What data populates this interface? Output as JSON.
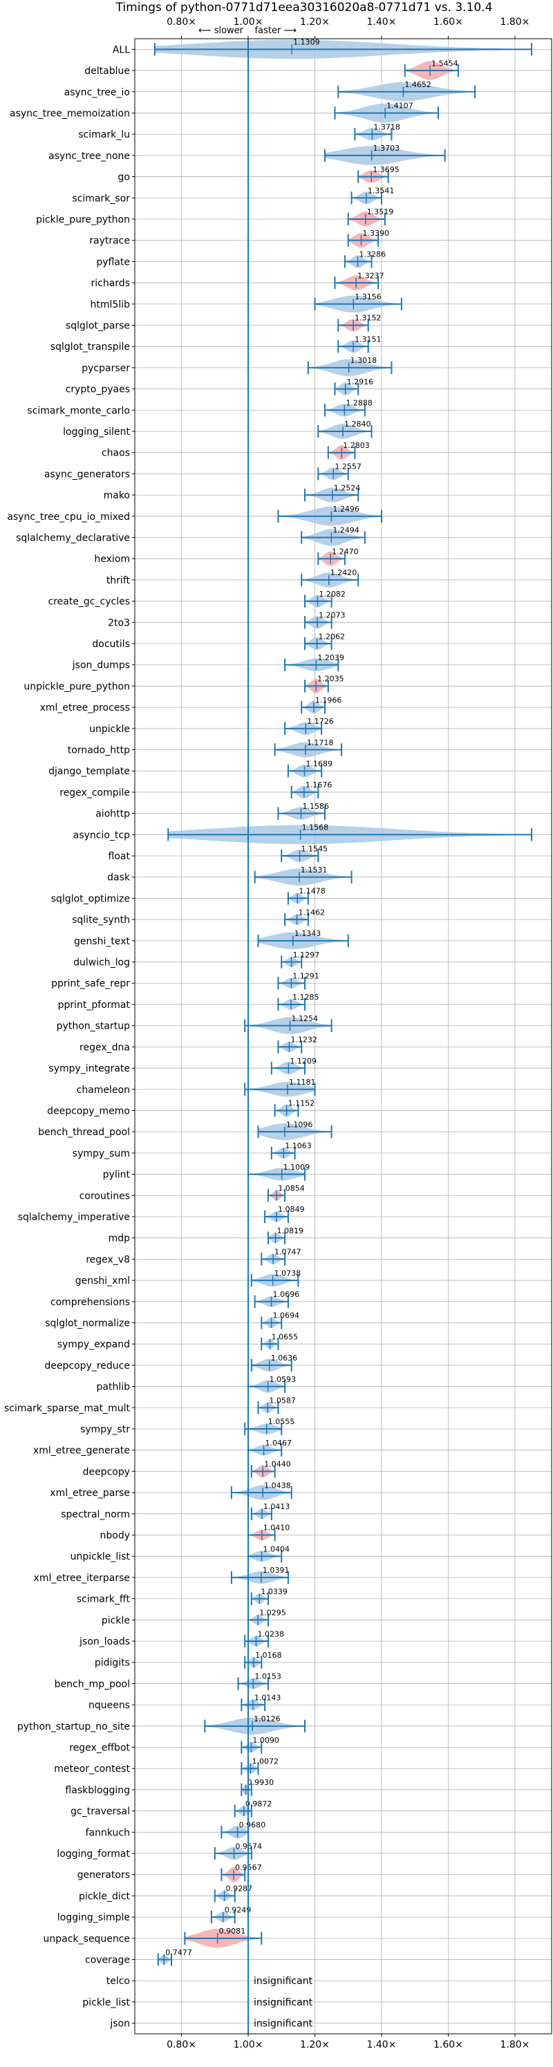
{
  "chart_data": {
    "type": "violin",
    "title": "Timings of python-0771d71eea30316020a8-0771d71 vs. 3.10.4",
    "direction_label": "⟵ slower    faster ⟶",
    "x_ticks": [
      0.8,
      1.0,
      1.2,
      1.4,
      1.6,
      1.8
    ],
    "x_tick_labels": [
      "0.80×",
      "1.00×",
      "1.20×",
      "1.40×",
      "1.60×",
      "1.80×"
    ],
    "xlim": [
      0.66,
      1.91
    ],
    "reference_line": 1.0,
    "grid": true,
    "colors": {
      "faster": "#a9c8e4",
      "slower": "#f3a9ad",
      "line": "#1f77b4",
      "grid": "#b0b0b0"
    },
    "insignificant_label": "insignificant",
    "benchmarks": [
      {
        "name": "ALL",
        "value": 1.1309,
        "lo": 0.72,
        "hi": 1.85,
        "w": 0.9,
        "color": "faster"
      },
      {
        "name": "deltablue",
        "value": 1.5454,
        "lo": 1.47,
        "hi": 1.63,
        "w": 0.9,
        "color": "slower"
      },
      {
        "name": "async_tree_io",
        "value": 1.4652,
        "lo": 1.27,
        "hi": 1.68,
        "w": 0.9,
        "color": "faster"
      },
      {
        "name": "async_tree_memoization",
        "value": 1.4107,
        "lo": 1.26,
        "hi": 1.57,
        "w": 0.9,
        "color": "faster"
      },
      {
        "name": "scimark_lu",
        "value": 1.3718,
        "lo": 1.32,
        "hi": 1.43,
        "w": 0.6,
        "color": "faster"
      },
      {
        "name": "async_tree_none",
        "value": 1.3703,
        "lo": 1.23,
        "hi": 1.59,
        "w": 0.9,
        "color": "faster"
      },
      {
        "name": "go",
        "value": 1.3695,
        "lo": 1.33,
        "hi": 1.42,
        "w": 0.6,
        "color": "slower"
      },
      {
        "name": "scimark_sor",
        "value": 1.3541,
        "lo": 1.31,
        "hi": 1.4,
        "w": 0.6,
        "color": "faster"
      },
      {
        "name": "pickle_pure_python",
        "value": 1.3519,
        "lo": 1.3,
        "hi": 1.41,
        "w": 0.7,
        "color": "slower"
      },
      {
        "name": "raytrace",
        "value": 1.339,
        "lo": 1.3,
        "hi": 1.39,
        "w": 0.7,
        "color": "slower"
      },
      {
        "name": "pyflate",
        "value": 1.3286,
        "lo": 1.29,
        "hi": 1.37,
        "w": 0.6,
        "color": "faster"
      },
      {
        "name": "richards",
        "value": 1.3237,
        "lo": 1.26,
        "hi": 1.39,
        "w": 0.7,
        "color": "slower"
      },
      {
        "name": "html5lib",
        "value": 1.3156,
        "lo": 1.2,
        "hi": 1.46,
        "w": 0.8,
        "color": "faster"
      },
      {
        "name": "sqlglot_parse",
        "value": 1.3152,
        "lo": 1.27,
        "hi": 1.36,
        "w": 0.6,
        "color": "slower"
      },
      {
        "name": "sqlglot_transpile",
        "value": 1.3151,
        "lo": 1.27,
        "hi": 1.36,
        "w": 0.6,
        "color": "faster"
      },
      {
        "name": "pycparser",
        "value": 1.3018,
        "lo": 1.18,
        "hi": 1.43,
        "w": 0.8,
        "color": "faster"
      },
      {
        "name": "crypto_pyaes",
        "value": 1.2916,
        "lo": 1.26,
        "hi": 1.33,
        "w": 0.6,
        "color": "faster"
      },
      {
        "name": "scimark_monte_carlo",
        "value": 1.2888,
        "lo": 1.23,
        "hi": 1.35,
        "w": 0.6,
        "color": "faster"
      },
      {
        "name": "logging_silent",
        "value": 1.284,
        "lo": 1.21,
        "hi": 1.37,
        "w": 0.7,
        "color": "faster"
      },
      {
        "name": "chaos",
        "value": 1.2803,
        "lo": 1.24,
        "hi": 1.32,
        "w": 0.7,
        "color": "slower"
      },
      {
        "name": "async_generators",
        "value": 1.2557,
        "lo": 1.21,
        "hi": 1.3,
        "w": 0.6,
        "color": "faster"
      },
      {
        "name": "mako",
        "value": 1.2524,
        "lo": 1.17,
        "hi": 1.33,
        "w": 0.7,
        "color": "faster"
      },
      {
        "name": "async_tree_cpu_io_mixed",
        "value": 1.2496,
        "lo": 1.09,
        "hi": 1.4,
        "w": 0.9,
        "color": "faster"
      },
      {
        "name": "sqlalchemy_declarative",
        "value": 1.2494,
        "lo": 1.16,
        "hi": 1.35,
        "w": 0.8,
        "color": "faster"
      },
      {
        "name": "hexiom",
        "value": 1.247,
        "lo": 1.21,
        "hi": 1.29,
        "w": 0.7,
        "color": "slower"
      },
      {
        "name": "thrift",
        "value": 1.242,
        "lo": 1.16,
        "hi": 1.33,
        "w": 0.7,
        "color": "faster"
      },
      {
        "name": "create_gc_cycles",
        "value": 1.2082,
        "lo": 1.17,
        "hi": 1.25,
        "w": 0.6,
        "color": "faster"
      },
      {
        "name": "2to3",
        "value": 1.2073,
        "lo": 1.17,
        "hi": 1.25,
        "w": 0.6,
        "color": "faster"
      },
      {
        "name": "docutils",
        "value": 1.2062,
        "lo": 1.17,
        "hi": 1.25,
        "w": 0.6,
        "color": "faster"
      },
      {
        "name": "json_dumps",
        "value": 1.2039,
        "lo": 1.11,
        "hi": 1.27,
        "w": 0.6,
        "color": "faster"
      },
      {
        "name": "unpickle_pure_python",
        "value": 1.2035,
        "lo": 1.17,
        "hi": 1.24,
        "w": 0.7,
        "color": "slower"
      },
      {
        "name": "xml_etree_process",
        "value": 1.1966,
        "lo": 1.16,
        "hi": 1.23,
        "w": 0.6,
        "color": "faster"
      },
      {
        "name": "unpickle",
        "value": 1.1726,
        "lo": 1.11,
        "hi": 1.22,
        "w": 0.6,
        "color": "faster"
      },
      {
        "name": "tornado_http",
        "value": 1.1718,
        "lo": 1.08,
        "hi": 1.28,
        "w": 0.7,
        "color": "faster"
      },
      {
        "name": "django_template",
        "value": 1.1689,
        "lo": 1.12,
        "hi": 1.22,
        "w": 0.6,
        "color": "faster"
      },
      {
        "name": "regex_compile",
        "value": 1.1676,
        "lo": 1.13,
        "hi": 1.21,
        "w": 0.6,
        "color": "faster"
      },
      {
        "name": "aiohttp",
        "value": 1.1586,
        "lo": 1.09,
        "hi": 1.23,
        "w": 0.6,
        "color": "faster"
      },
      {
        "name": "asyncio_tcp",
        "value": 1.1568,
        "lo": 0.76,
        "hi": 1.85,
        "w": 0.9,
        "color": "faster"
      },
      {
        "name": "float",
        "value": 1.1545,
        "lo": 1.1,
        "hi": 1.21,
        "w": 0.6,
        "color": "faster"
      },
      {
        "name": "dask",
        "value": 1.1531,
        "lo": 1.02,
        "hi": 1.31,
        "w": 0.8,
        "color": "faster"
      },
      {
        "name": "sqlglot_optimize",
        "value": 1.1478,
        "lo": 1.12,
        "hi": 1.18,
        "w": 0.5,
        "color": "faster"
      },
      {
        "name": "sqlite_synth",
        "value": 1.1462,
        "lo": 1.11,
        "hi": 1.18,
        "w": 0.5,
        "color": "faster"
      },
      {
        "name": "genshi_text",
        "value": 1.1343,
        "lo": 1.03,
        "hi": 1.3,
        "w": 0.8,
        "color": "faster"
      },
      {
        "name": "dulwich_log",
        "value": 1.1297,
        "lo": 1.1,
        "hi": 1.16,
        "w": 0.5,
        "color": "faster"
      },
      {
        "name": "pprint_safe_repr",
        "value": 1.1291,
        "lo": 1.09,
        "hi": 1.17,
        "w": 0.5,
        "color": "faster"
      },
      {
        "name": "pprint_pformat",
        "value": 1.1285,
        "lo": 1.09,
        "hi": 1.17,
        "w": 0.5,
        "color": "faster"
      },
      {
        "name": "python_startup",
        "value": 1.1254,
        "lo": 0.99,
        "hi": 1.25,
        "w": 0.8,
        "color": "faster"
      },
      {
        "name": "regex_dna",
        "value": 1.1232,
        "lo": 1.09,
        "hi": 1.16,
        "w": 0.5,
        "color": "faster"
      },
      {
        "name": "sympy_integrate",
        "value": 1.1209,
        "lo": 1.07,
        "hi": 1.17,
        "w": 0.6,
        "color": "faster"
      },
      {
        "name": "chameleon",
        "value": 1.1181,
        "lo": 0.99,
        "hi": 1.2,
        "w": 0.7,
        "color": "faster"
      },
      {
        "name": "deepcopy_memo",
        "value": 1.1152,
        "lo": 1.08,
        "hi": 1.15,
        "w": 0.6,
        "color": "faster"
      },
      {
        "name": "bench_thread_pool",
        "value": 1.1096,
        "lo": 1.03,
        "hi": 1.25,
        "w": 0.8,
        "color": "faster"
      },
      {
        "name": "sympy_sum",
        "value": 1.1063,
        "lo": 1.07,
        "hi": 1.14,
        "w": 0.5,
        "color": "faster"
      },
      {
        "name": "pylint",
        "value": 1.1009,
        "lo": 1.0,
        "hi": 1.17,
        "w": 0.6,
        "color": "faster"
      },
      {
        "name": "coroutines",
        "value": 1.0854,
        "lo": 1.06,
        "hi": 1.11,
        "w": 0.5,
        "color": "slower"
      },
      {
        "name": "sqlalchemy_imperative",
        "value": 1.0849,
        "lo": 1.05,
        "hi": 1.12,
        "w": 0.5,
        "color": "faster"
      },
      {
        "name": "mdp",
        "value": 1.0819,
        "lo": 1.06,
        "hi": 1.11,
        "w": 0.5,
        "color": "faster"
      },
      {
        "name": "regex_v8",
        "value": 1.0747,
        "lo": 1.04,
        "hi": 1.11,
        "w": 0.5,
        "color": "faster"
      },
      {
        "name": "genshi_xml",
        "value": 1.0738,
        "lo": 1.01,
        "hi": 1.15,
        "w": 0.6,
        "color": "faster"
      },
      {
        "name": "comprehensions",
        "value": 1.0696,
        "lo": 1.02,
        "hi": 1.12,
        "w": 0.5,
        "color": "faster"
      },
      {
        "name": "sqlglot_normalize",
        "value": 1.0694,
        "lo": 1.04,
        "hi": 1.1,
        "w": 0.5,
        "color": "faster"
      },
      {
        "name": "sympy_expand",
        "value": 1.0655,
        "lo": 1.04,
        "hi": 1.09,
        "w": 0.5,
        "color": "faster"
      },
      {
        "name": "deepcopy_reduce",
        "value": 1.0636,
        "lo": 1.01,
        "hi": 1.13,
        "w": 0.6,
        "color": "faster"
      },
      {
        "name": "pathlib",
        "value": 1.0593,
        "lo": 1.0,
        "hi": 1.11,
        "w": 0.6,
        "color": "faster"
      },
      {
        "name": "scimark_sparse_mat_mult",
        "value": 1.0587,
        "lo": 1.03,
        "hi": 1.09,
        "w": 0.5,
        "color": "faster"
      },
      {
        "name": "sympy_str",
        "value": 1.0555,
        "lo": 0.99,
        "hi": 1.1,
        "w": 0.5,
        "color": "faster"
      },
      {
        "name": "xml_etree_generate",
        "value": 1.0467,
        "lo": 1.0,
        "hi": 1.1,
        "w": 0.5,
        "color": "faster"
      },
      {
        "name": "deepcopy",
        "value": 1.044,
        "lo": 1.01,
        "hi": 1.08,
        "w": 0.6,
        "color": "slower"
      },
      {
        "name": "xml_etree_parse",
        "value": 1.0438,
        "lo": 0.95,
        "hi": 1.13,
        "w": 0.7,
        "color": "faster"
      },
      {
        "name": "spectral_norm",
        "value": 1.0413,
        "lo": 1.01,
        "hi": 1.07,
        "w": 0.5,
        "color": "faster"
      },
      {
        "name": "nbody",
        "value": 1.041,
        "lo": 1.0,
        "hi": 1.08,
        "w": 0.5,
        "color": "slower"
      },
      {
        "name": "unpickle_list",
        "value": 1.0404,
        "lo": 1.0,
        "hi": 1.1,
        "w": 0.5,
        "color": "faster"
      },
      {
        "name": "xml_etree_iterparse",
        "value": 1.0391,
        "lo": 0.95,
        "hi": 1.12,
        "w": 0.6,
        "color": "faster"
      },
      {
        "name": "scimark_fft",
        "value": 1.0339,
        "lo": 1.01,
        "hi": 1.06,
        "w": 0.5,
        "color": "faster"
      },
      {
        "name": "pickle",
        "value": 1.0295,
        "lo": 1.0,
        "hi": 1.06,
        "w": 0.5,
        "color": "faster"
      },
      {
        "name": "json_loads",
        "value": 1.0238,
        "lo": 0.99,
        "hi": 1.06,
        "w": 0.5,
        "color": "faster"
      },
      {
        "name": "pidigits",
        "value": 1.0168,
        "lo": 0.99,
        "hi": 1.04,
        "w": 0.5,
        "color": "faster"
      },
      {
        "name": "bench_mp_pool",
        "value": 1.0153,
        "lo": 0.97,
        "hi": 1.06,
        "w": 0.5,
        "color": "faster"
      },
      {
        "name": "nqueens",
        "value": 1.0143,
        "lo": 0.98,
        "hi": 1.05,
        "w": 0.5,
        "color": "faster"
      },
      {
        "name": "python_startup_no_site",
        "value": 1.0126,
        "lo": 0.87,
        "hi": 1.17,
        "w": 0.8,
        "color": "faster"
      },
      {
        "name": "regex_effbot",
        "value": 1.009,
        "lo": 0.98,
        "hi": 1.04,
        "w": 0.5,
        "color": "faster"
      },
      {
        "name": "meteor_contest",
        "value": 1.0072,
        "lo": 0.98,
        "hi": 1.03,
        "w": 0.5,
        "color": "faster"
      },
      {
        "name": "flaskblogging",
        "value": 0.993,
        "lo": 0.98,
        "hi": 1.01,
        "w": 0.5,
        "color": "faster"
      },
      {
        "name": "gc_traversal",
        "value": 0.9872,
        "lo": 0.96,
        "hi": 1.01,
        "w": 0.5,
        "color": "faster"
      },
      {
        "name": "fannkuch",
        "value": 0.968,
        "lo": 0.92,
        "hi": 1.0,
        "w": 0.6,
        "color": "faster"
      },
      {
        "name": "logging_format",
        "value": 0.9574,
        "lo": 0.9,
        "hi": 1.01,
        "w": 0.6,
        "color": "faster"
      },
      {
        "name": "generators",
        "value": 0.9567,
        "lo": 0.92,
        "hi": 0.99,
        "w": 0.7,
        "color": "slower"
      },
      {
        "name": "pickle_dict",
        "value": 0.9287,
        "lo": 0.9,
        "hi": 0.96,
        "w": 0.5,
        "color": "faster"
      },
      {
        "name": "logging_simple",
        "value": 0.9249,
        "lo": 0.89,
        "hi": 0.96,
        "w": 0.5,
        "color": "faster"
      },
      {
        "name": "unpack_sequence",
        "value": 0.9081,
        "lo": 0.81,
        "hi": 1.04,
        "w": 0.9,
        "color": "slower"
      },
      {
        "name": "coverage",
        "value": 0.7477,
        "lo": 0.73,
        "hi": 0.77,
        "w": 0.5,
        "color": "faster"
      },
      {
        "name": "telco",
        "value": null,
        "insignificant": true
      },
      {
        "name": "pickle_list",
        "value": null,
        "insignificant": true
      },
      {
        "name": "json",
        "value": null,
        "insignificant": true
      }
    ]
  }
}
